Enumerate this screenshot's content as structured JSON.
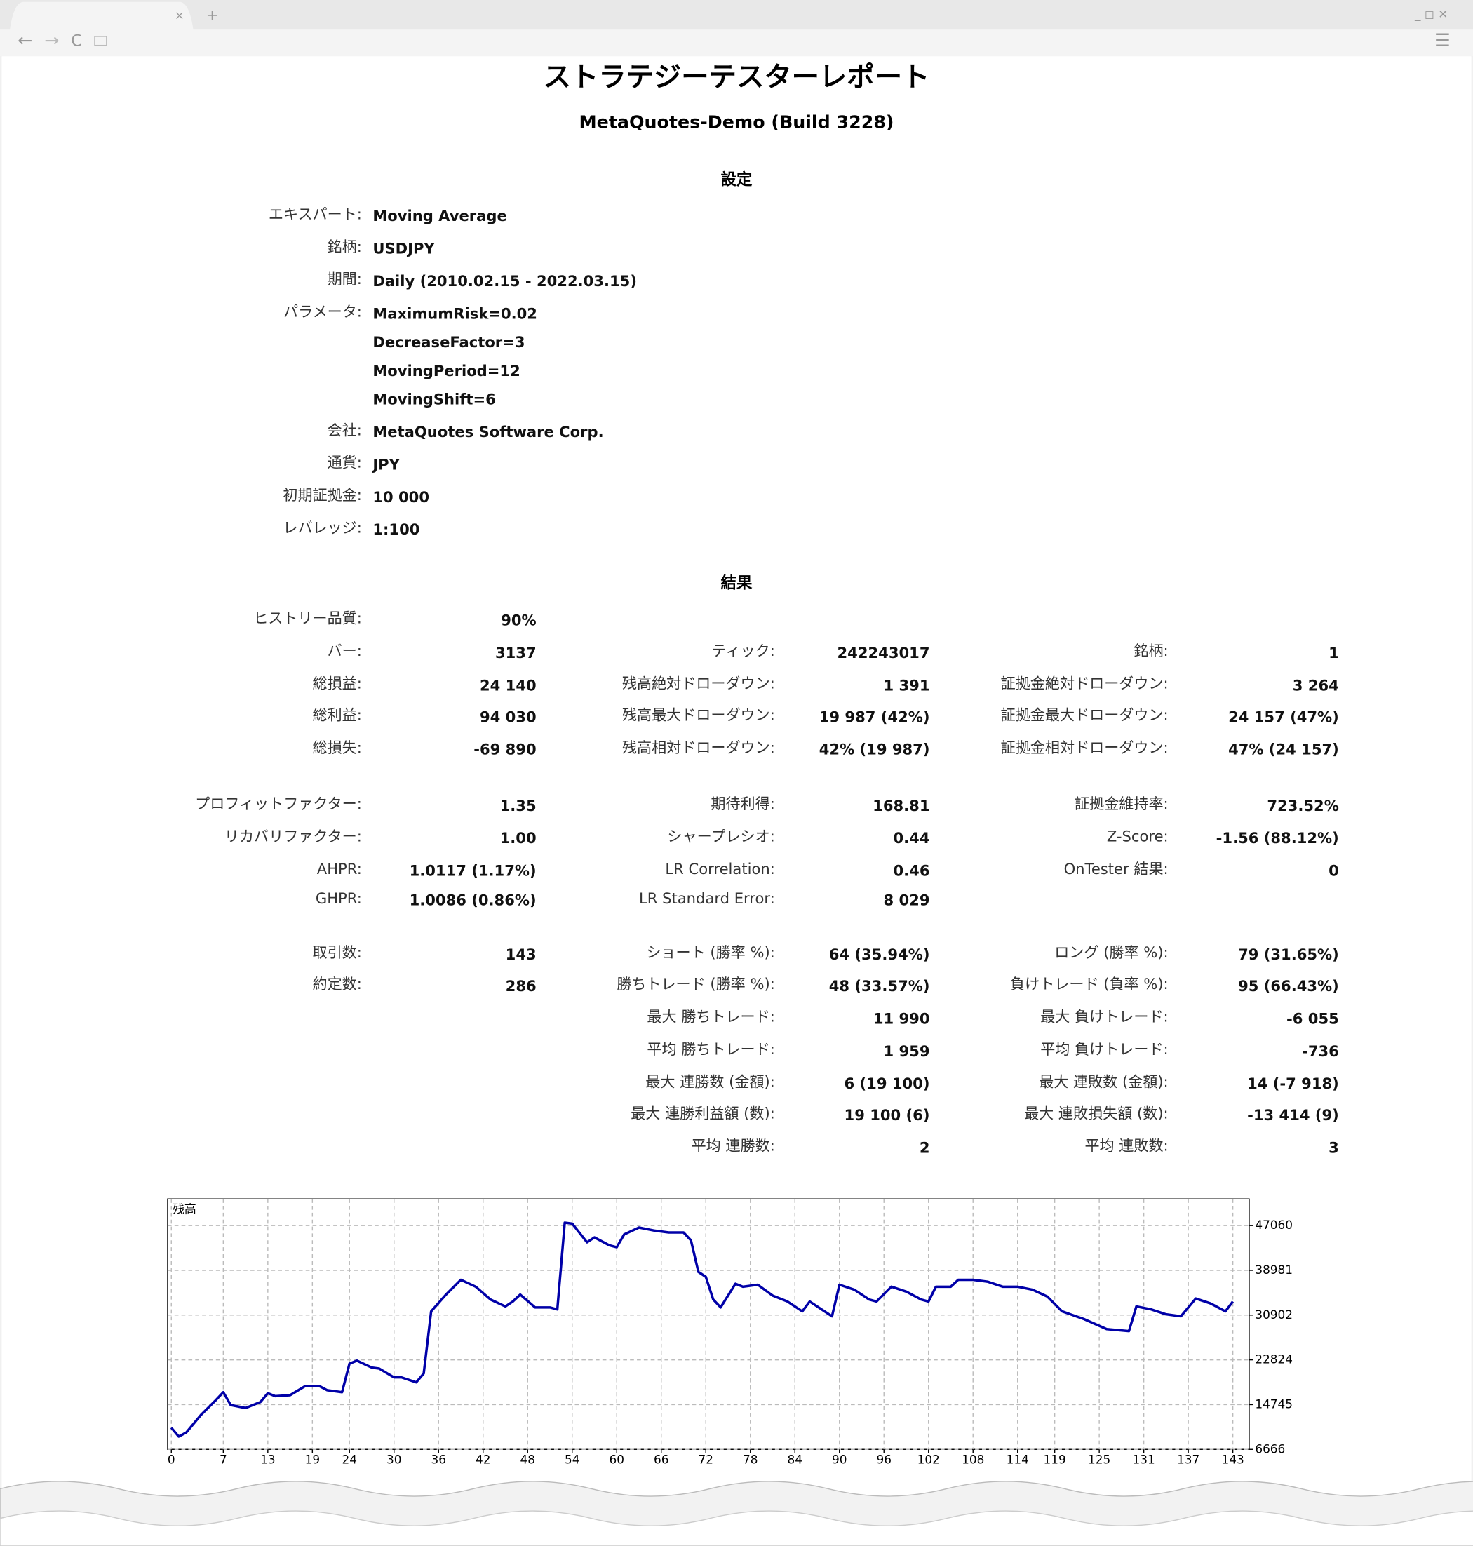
{
  "header": {
    "title": "ストラテジーテスターレポート",
    "subtitle": "MetaQuotes-Demo (Build 3228)"
  },
  "settings": {
    "heading": "設定",
    "rows": [
      {
        "label": "エキスパート:",
        "values": [
          "Moving Average"
        ]
      },
      {
        "label": "銘柄:",
        "values": [
          "USDJPY"
        ]
      },
      {
        "label": "期間:",
        "values": [
          "Daily (2010.02.15 - 2022.03.15)"
        ]
      },
      {
        "label": "パラメータ:",
        "values": [
          "MaximumRisk=0.02",
          "DecreaseFactor=3",
          "MovingPeriod=12",
          "MovingShift=6"
        ]
      },
      {
        "label": "会社:",
        "values": [
          "MetaQuotes Software Corp."
        ]
      },
      {
        "label": "通貨:",
        "values": [
          "JPY"
        ]
      },
      {
        "label": "初期証拠金:",
        "values": [
          "10 000"
        ]
      },
      {
        "label": "レバレッジ:",
        "values": [
          "1:100"
        ]
      }
    ]
  },
  "results": {
    "heading": "結果",
    "columns": [
      [
        {
          "label": "ヒストリー品質:",
          "value": "90%"
        },
        {
          "label": "バー:",
          "value": "3137"
        },
        {
          "label": "総損益:",
          "value": "24 140"
        },
        {
          "label": "総利益:",
          "value": "94 030"
        },
        {
          "label": "総損失:",
          "value": "-69 890"
        },
        {
          "label": "プロフィットファクター:",
          "value": "1.35"
        },
        {
          "label": "リカバリファクター:",
          "value": "1.00"
        },
        {
          "label": "AHPR:",
          "value": "1.0117 (1.17%)"
        },
        {
          "label": "GHPR:",
          "value": "1.0086 (0.86%)"
        },
        {
          "label": "取引数:",
          "value": "143"
        },
        {
          "label": "約定数:",
          "value": "286"
        },
        null,
        null,
        null,
        null,
        null
      ],
      [
        null,
        {
          "label": "ティック:",
          "value": "242243017"
        },
        {
          "label": "残高絶対ドローダウン:",
          "value": "1 391"
        },
        {
          "label": "残高最大ドローダウン:",
          "value": "19 987 (42%)"
        },
        {
          "label": "残高相対ドローダウン:",
          "value": "42% (19 987)"
        },
        {
          "label": "期待利得:",
          "value": "168.81"
        },
        {
          "label": "シャープレシオ:",
          "value": "0.44"
        },
        {
          "label": "LR Correlation:",
          "value": "0.46"
        },
        {
          "label": "LR Standard Error:",
          "value": "8 029"
        },
        {
          "label": "ショート (勝率 %):",
          "value": "64 (35.94%)"
        },
        {
          "label": "勝ちトレード (勝率 %):",
          "value": "48 (33.57%)"
        },
        {
          "label": "最大 勝ちトレード:",
          "value": "11 990"
        },
        {
          "label": "平均 勝ちトレード:",
          "value": "1 959"
        },
        {
          "label": "最大 連勝数 (金額):",
          "value": "6 (19 100)"
        },
        {
          "label": "最大 連勝利益額 (数):",
          "value": "19 100 (6)"
        },
        {
          "label": "平均 連勝数:",
          "value": "2"
        }
      ],
      [
        null,
        {
          "label": "銘柄:",
          "value": "1"
        },
        {
          "label": "証拠金絶対ドローダウン:",
          "value": "3 264"
        },
        {
          "label": "証拠金最大ドローダウン:",
          "value": "24 157 (47%)"
        },
        {
          "label": "証拠金相対ドローダウン:",
          "value": "47% (24 157)"
        },
        {
          "label": "証拠金維持率:",
          "value": "723.52%"
        },
        {
          "label": "Z-Score:",
          "value": "-1.56 (88.12%)"
        },
        {
          "label": "OnTester 結果:",
          "value": "0"
        },
        null,
        {
          "label": "ロング (勝率 %):",
          "value": "79 (31.65%)"
        },
        {
          "label": "負けトレード (負率 %):",
          "value": "95 (66.43%)"
        },
        {
          "label": "最大 負けトレード:",
          "value": "-6 055"
        },
        {
          "label": "平均 負けトレード:",
          "value": "-736"
        },
        {
          "label": "最大 連敗数 (金額):",
          "value": "14 (-7 918)"
        },
        {
          "label": "最大 連敗損失額 (数):",
          "value": "-13 414 (9)"
        },
        {
          "label": "平均 連敗数:",
          "value": "3"
        }
      ]
    ]
  },
  "chart": {
    "type": "line",
    "label": "残高",
    "color": "#0000a8",
    "grid": true,
    "x": [
      0,
      1,
      2,
      4,
      6,
      7,
      8,
      10,
      12,
      13,
      14,
      16,
      18,
      20,
      21,
      23,
      24,
      25,
      27,
      28,
      30,
      31,
      33,
      34,
      35,
      37,
      39,
      41,
      43,
      45,
      46,
      47,
      49,
      51,
      52,
      53,
      54,
      56,
      57,
      59,
      60,
      61,
      63,
      65,
      67,
      69,
      70,
      71,
      72,
      73,
      74,
      76,
      77,
      79,
      81,
      83,
      85,
      86,
      87,
      89,
      90,
      92,
      94,
      95,
      97,
      99,
      101,
      102,
      103,
      105,
      106,
      108,
      110,
      112,
      114,
      116,
      118,
      120,
      123,
      126,
      129,
      130,
      132,
      134,
      136,
      138,
      140,
      142,
      143
    ],
    "values": [
      10581,
      8980,
      9691,
      12894,
      15564,
      16987,
      14674,
      14140,
      15208,
      16810,
      16276,
      16453,
      18055,
      18055,
      17343,
      16987,
      22147,
      22681,
      21436,
      21258,
      19656,
      19656,
      18766,
      20368,
      31579,
      34604,
      37274,
      36028,
      33715,
      32469,
      33359,
      34604,
      32291,
      32291,
      31935,
      47594,
      47416,
      44035,
      44925,
      43502,
      43146,
      45459,
      46705,
      46171,
      45815,
      45815,
      44391,
      38697,
      37807,
      33715,
      32291,
      36562,
      36028,
      36384,
      34426,
      33359,
      31579,
      33359,
      32469,
      30690,
      36384,
      35494,
      33715,
      33359,
      36028,
      35138,
      33715,
      33359,
      36028,
      36028,
      37274,
      37274,
      36918,
      36028,
      36028,
      35494,
      34248,
      31579,
      30156,
      28376,
      28020,
      32469,
      31935,
      31046,
      30690,
      33893,
      33003,
      31579,
      33359
    ],
    "xlim": [
      -0.5,
      145.2
    ],
    "ylim": [
      6666,
      51865
    ],
    "xticks": [
      0,
      7,
      13,
      19,
      24,
      30,
      36,
      42,
      48,
      54,
      60,
      66,
      72,
      78,
      84,
      90,
      96,
      102,
      108,
      114,
      119,
      125,
      131,
      137,
      143
    ],
    "yticks": [
      6666,
      14745,
      22824,
      30902,
      38981,
      47060
    ]
  }
}
